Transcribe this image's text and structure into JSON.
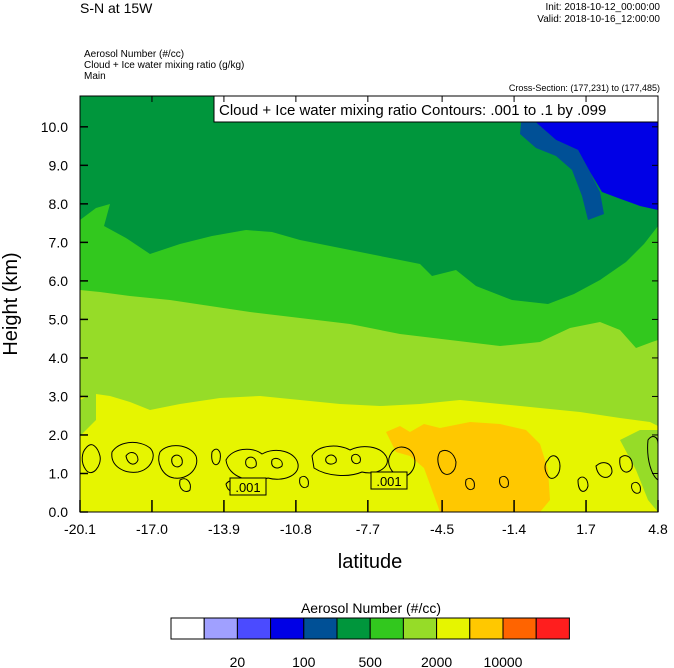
{
  "header": {
    "title": "S-N at 15W",
    "init": "Init: 2018-10-12_00:00:00",
    "valid": "Valid: 2018-10-16_12:00:00",
    "fields": [
      "Aerosol Number   (#/cc)",
      "Cloud + Ice water mixing ratio   (g/kg)",
      "Main"
    ],
    "cross_section": "Cross-Section: (177,231) to (177,485)"
  },
  "chart_data": {
    "type": "heatmap",
    "contour_label": "Cloud + Ice water mixing ratio Contours: .001 to .1 by .099",
    "xlabel": "latitude",
    "ylabel": "Height (km)",
    "x_ticks": [
      "-20.1",
      "-17.0",
      "-13.9",
      "-10.8",
      "-7.7",
      "-4.5",
      "-1.4",
      "1.7",
      "4.8"
    ],
    "y_ticks": [
      "0.0",
      "1.0",
      "2.0",
      "3.0",
      "4.0",
      "5.0",
      "6.0",
      "7.0",
      "8.0",
      "9.0",
      "10.0"
    ],
    "xlim": [
      -20.1,
      4.8
    ],
    "ylim": [
      0.0,
      10.8
    ],
    "contour_value_labels": [
      ".001",
      ".001"
    ],
    "colorbar": {
      "title": "Aerosol Number  (#/cc)",
      "colors": [
        "#ffffff",
        "#a0a0ff",
        "#4b4bff",
        "#0000e6",
        "#005096",
        "#00963c",
        "#32c81e",
        "#96dc28",
        "#e6f500",
        "#ffc800",
        "#ff6400",
        "#ff1e1e"
      ],
      "labels": [
        "20",
        "100",
        "500",
        "2000",
        "10000"
      ]
    }
  }
}
